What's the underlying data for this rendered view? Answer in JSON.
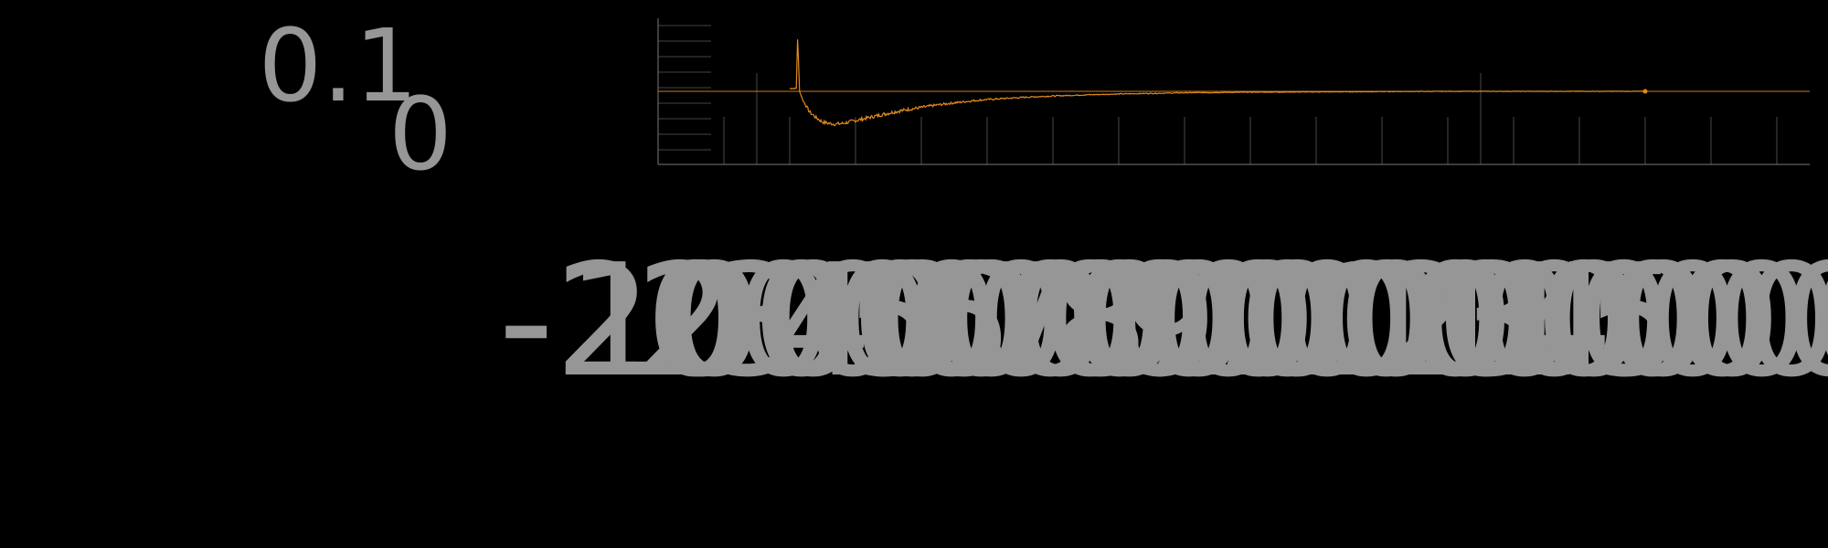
{
  "chart_data": {
    "type": "line",
    "title": "",
    "xlabel": "",
    "ylabel": "",
    "xlim": [
      -2000,
      15500
    ],
    "ylim": [
      -0.25,
      0.25
    ],
    "grid": true,
    "legend": "none",
    "y_tick_labels": [
      "0.1",
      "0"
    ],
    "x_tick_labels": [
      "-2000",
      "0",
      "1000",
      "2000",
      "3000",
      "4000",
      "5000",
      "6000",
      "7000",
      "8000",
      "9000",
      "10000",
      "11000",
      "12000",
      "13000",
      "14000",
      "15000"
    ],
    "series": [
      {
        "color": "#e08a1e",
        "x": [
          0,
          100,
          120,
          150,
          200,
          300,
          400,
          500,
          600,
          700,
          800,
          900,
          1000,
          1200,
          1400,
          1600,
          1800,
          2000,
          2200,
          2400,
          2600,
          2800,
          3000,
          3300,
          3600,
          4000,
          4500,
          5000,
          5500,
          6000,
          7000,
          8000,
          9000,
          10000,
          11000,
          12000,
          13000
        ],
        "y": [
          0.01,
          0.01,
          0.18,
          0.0,
          -0.03,
          -0.07,
          -0.09,
          -0.105,
          -0.11,
          -0.112,
          -0.11,
          -0.105,
          -0.1,
          -0.09,
          -0.08,
          -0.07,
          -0.062,
          -0.055,
          -0.048,
          -0.042,
          -0.037,
          -0.032,
          -0.028,
          -0.024,
          -0.02,
          -0.016,
          -0.012,
          -0.009,
          -0.007,
          -0.005,
          -0.003,
          -0.002,
          -0.001,
          0.0,
          0.0,
          0.0,
          0.0
        ]
      }
    ]
  },
  "colors": {
    "background": "#000000",
    "series": "#e08a1e",
    "text": "#969696",
    "grid": "#5a5a5a",
    "axis": "#7a7a7a",
    "zero_line": "#c87a1a"
  }
}
